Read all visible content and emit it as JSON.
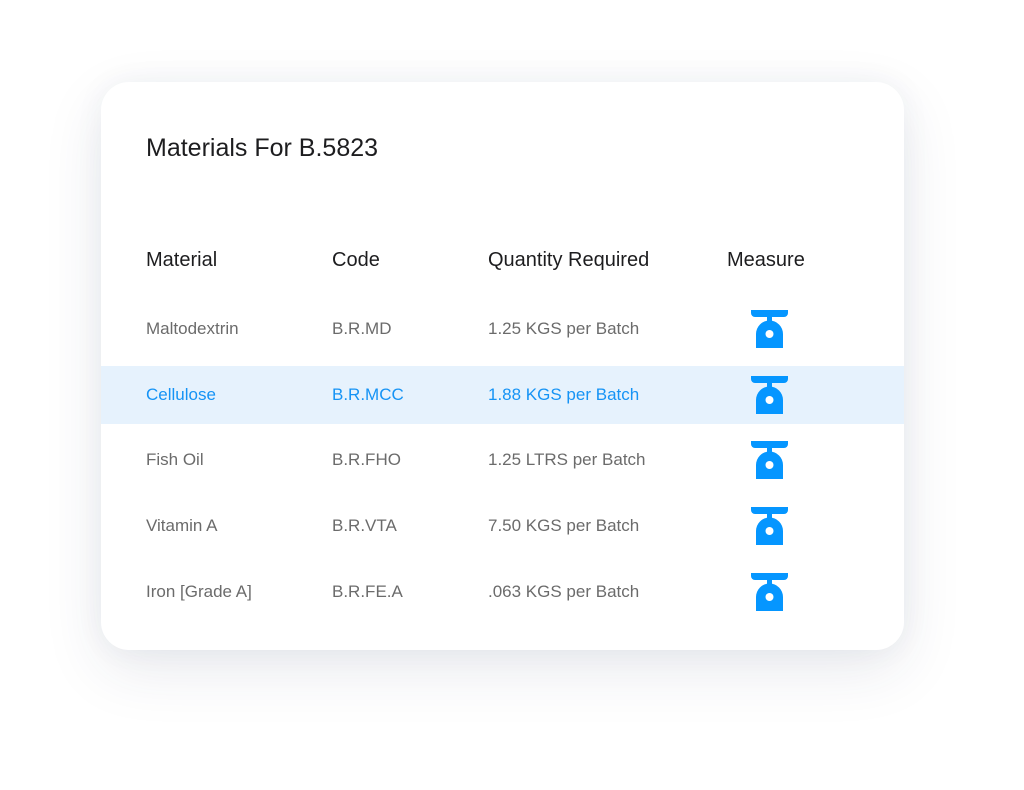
{
  "title": "Materials For B.5823",
  "columns": [
    "Material",
    "Code",
    "Quantity Required",
    "Measure"
  ],
  "accent_color": "#0596ff",
  "selected_row_bg": "#e6f2fd",
  "rows": [
    {
      "material": "Maltodextrin",
      "code": "B.R.MD",
      "quantity": "1.25 KGS per Batch",
      "measure_icon": "scale-icon",
      "selected": false
    },
    {
      "material": "Cellulose",
      "code": "B.R.MCC",
      "quantity": "1.88 KGS per Batch",
      "measure_icon": "scale-icon",
      "selected": true
    },
    {
      "material": "Fish Oil",
      "code": "B.R.FHO",
      "quantity": "1.25 LTRS per Batch",
      "measure_icon": "scale-icon",
      "selected": false
    },
    {
      "material": "Vitamin A",
      "code": "B.R.VTA",
      "quantity": "7.50 KGS per Batch",
      "measure_icon": "scale-icon",
      "selected": false
    },
    {
      "material": "Iron [Grade A]",
      "code": "B.R.FE.A",
      "quantity": ".063 KGS per Batch",
      "measure_icon": "scale-icon",
      "selected": false
    }
  ]
}
